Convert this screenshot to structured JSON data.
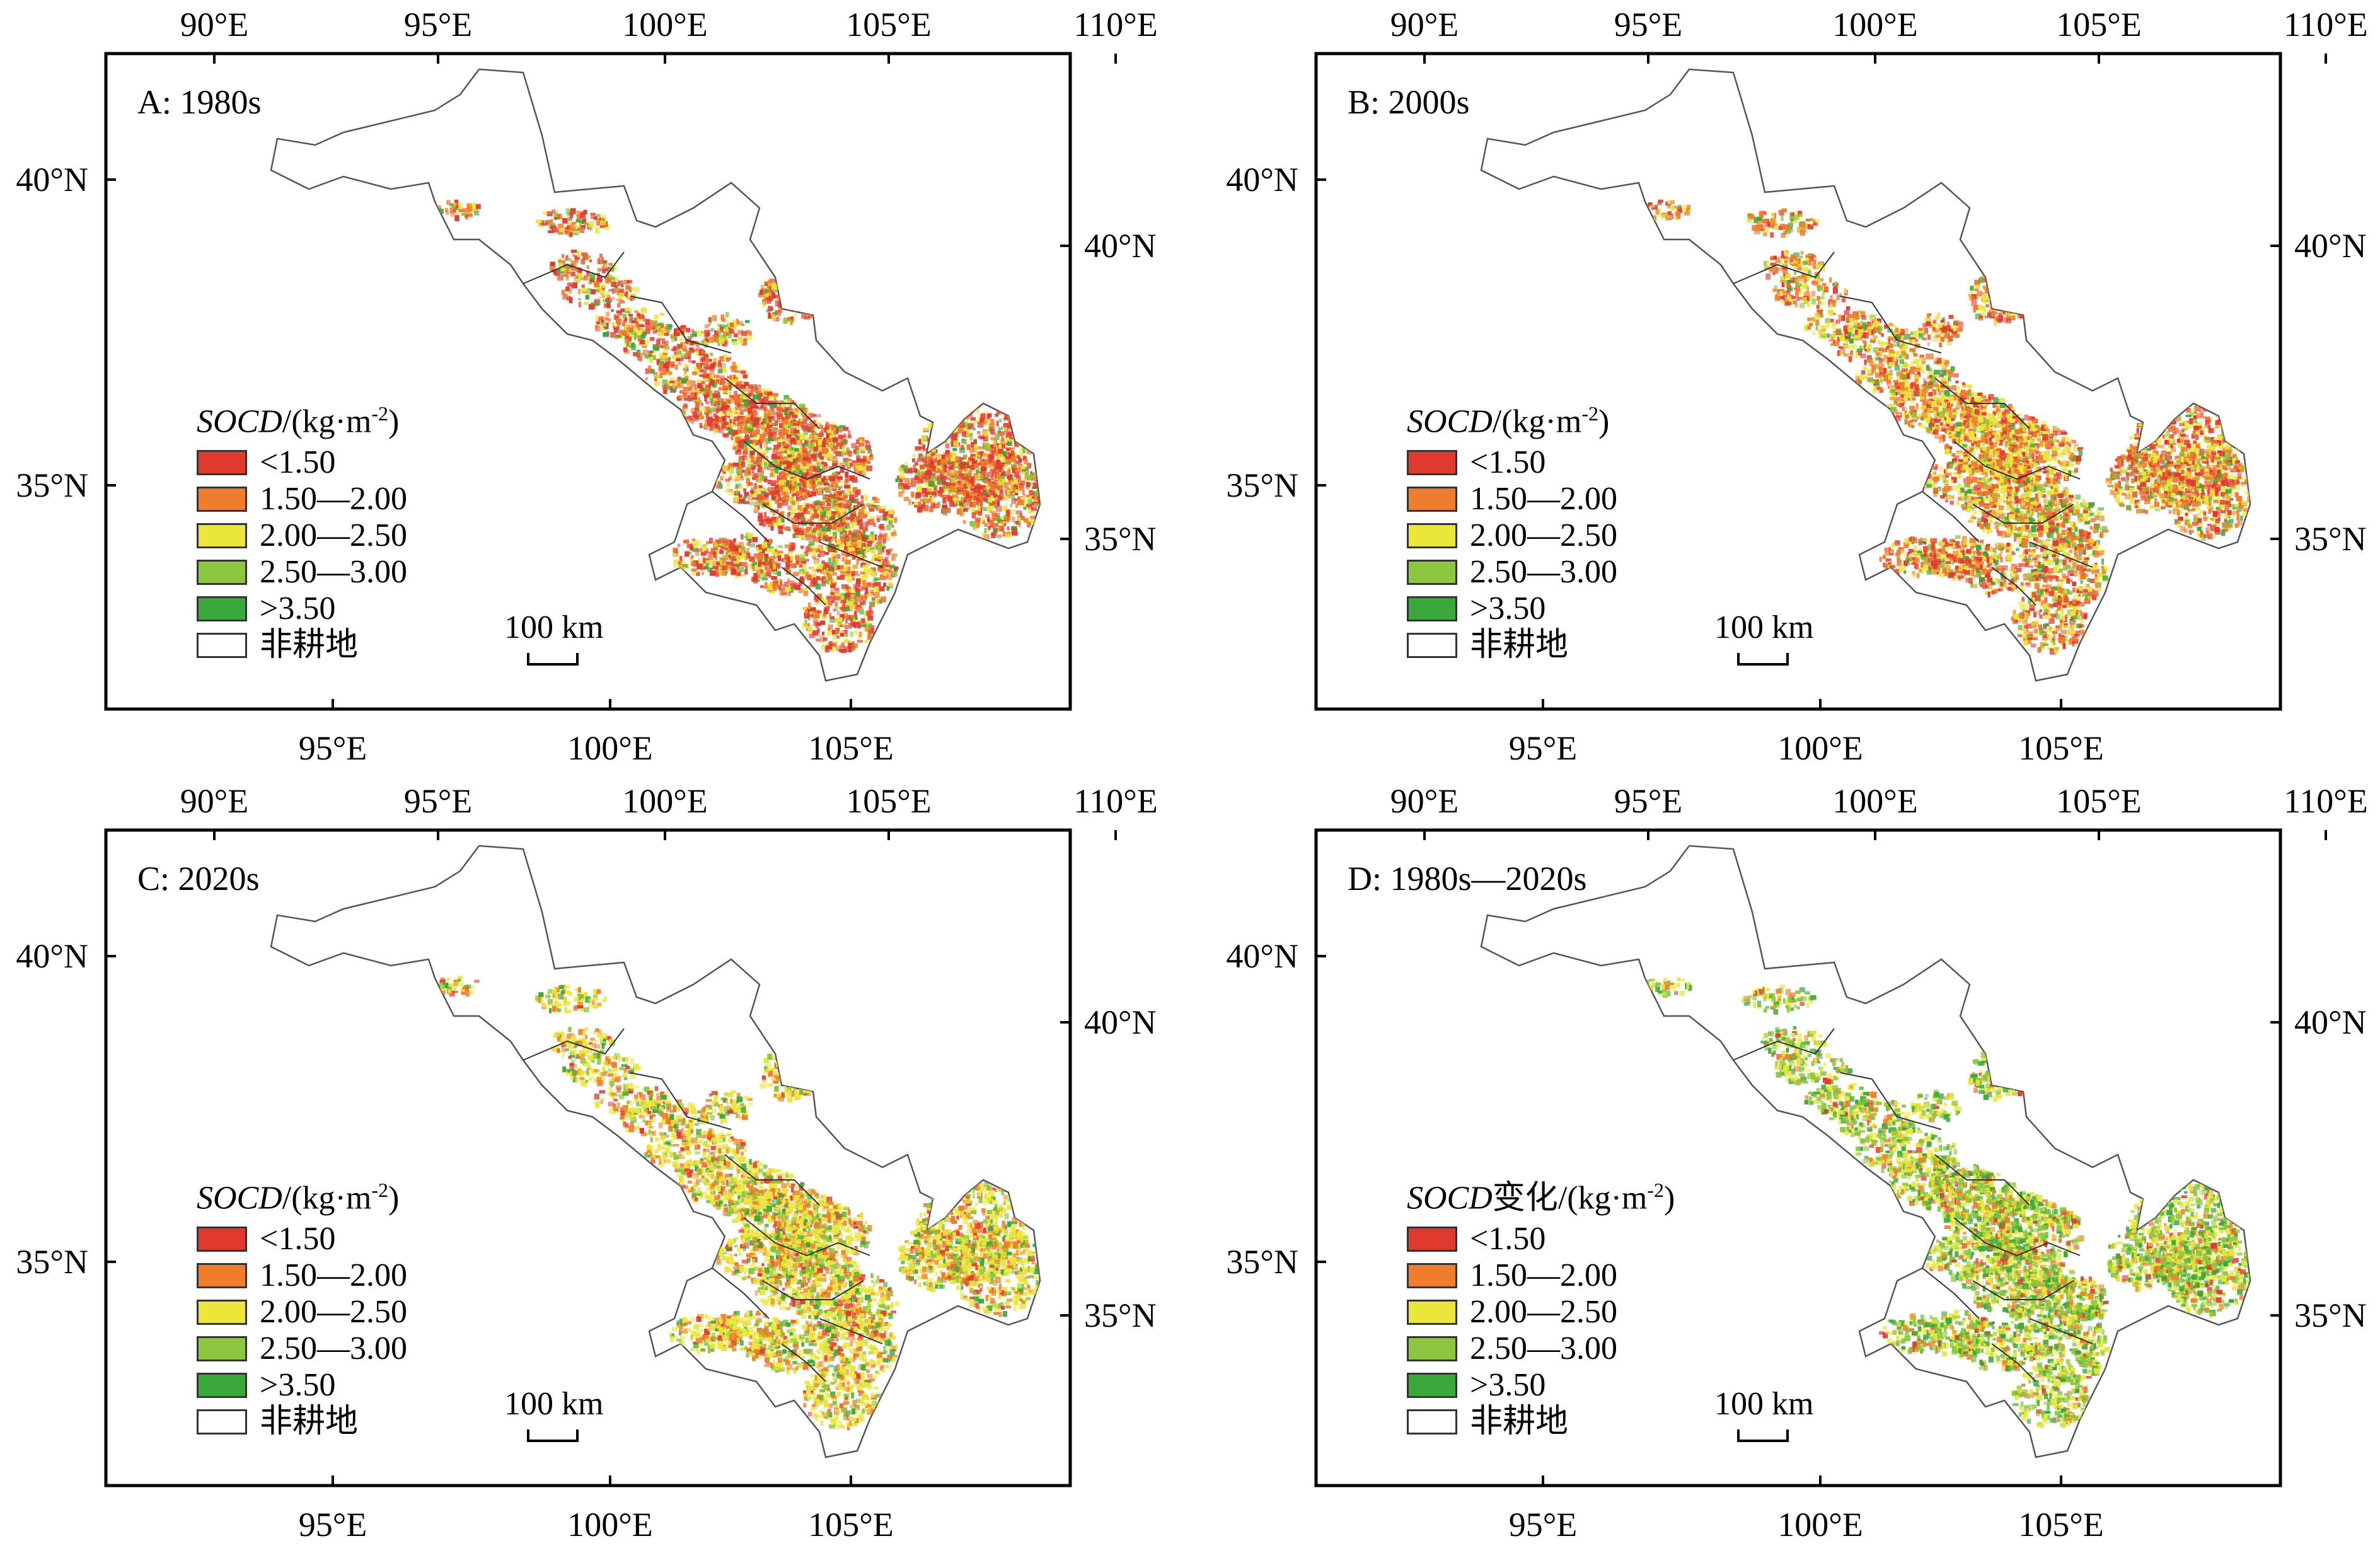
{
  "colors": {
    "red": "#e03a2f",
    "orange": "#ef7d2c",
    "yellow": "#eae63a",
    "lightgreen": "#8cc63f",
    "green": "#3aa83a",
    "nonfarm": "#ffffff",
    "frame": "#000000",
    "boundary": "#555555"
  },
  "top_lon_labels": [
    "90°E",
    "95°E",
    "100°E",
    "105°E",
    "110°E"
  ],
  "bottom_lon_labels": [
    "95°E",
    "100°E",
    "105°E"
  ],
  "left_lat_labels": [
    "40°N",
    "35°N"
  ],
  "right_lat_labels": [
    "40°N",
    "35°N"
  ],
  "scale_bar": "100 km",
  "legend_items": [
    {
      "label": "<1.50",
      "color": "#e03a2f"
    },
    {
      "label": "1.50—2.00",
      "color": "#ef7d2c"
    },
    {
      "label": "2.00—2.50",
      "color": "#eae63a"
    },
    {
      "label": "2.50—3.00",
      "color": "#8cc63f"
    },
    {
      "label": ">3.50",
      "color": "#3aa83a"
    },
    {
      "label": "非耕地",
      "color": "#ffffff"
    }
  ],
  "panels": [
    {
      "title": "A: 1980s",
      "legend_title_main": "SOCD",
      "legend_title_mid": "",
      "legend_title_unit": "/(kg·m",
      "legend_title_sup": "-2",
      "legend_title_end": ")"
    },
    {
      "title": "B: 2000s",
      "legend_title_main": "SOCD",
      "legend_title_mid": "",
      "legend_title_unit": "/(kg·m",
      "legend_title_sup": "-2",
      "legend_title_end": ")"
    },
    {
      "title": "C: 2020s",
      "legend_title_main": "SOCD",
      "legend_title_mid": "",
      "legend_title_unit": "/(kg·m",
      "legend_title_sup": "-2",
      "legend_title_end": ")"
    },
    {
      "title": "D: 1980s—2020s",
      "legend_title_main": "SOCD",
      "legend_title_mid": "变化",
      "legend_title_unit": "/(kg·m",
      "legend_title_sup": "-2",
      "legend_title_end": ")"
    }
  ]
}
